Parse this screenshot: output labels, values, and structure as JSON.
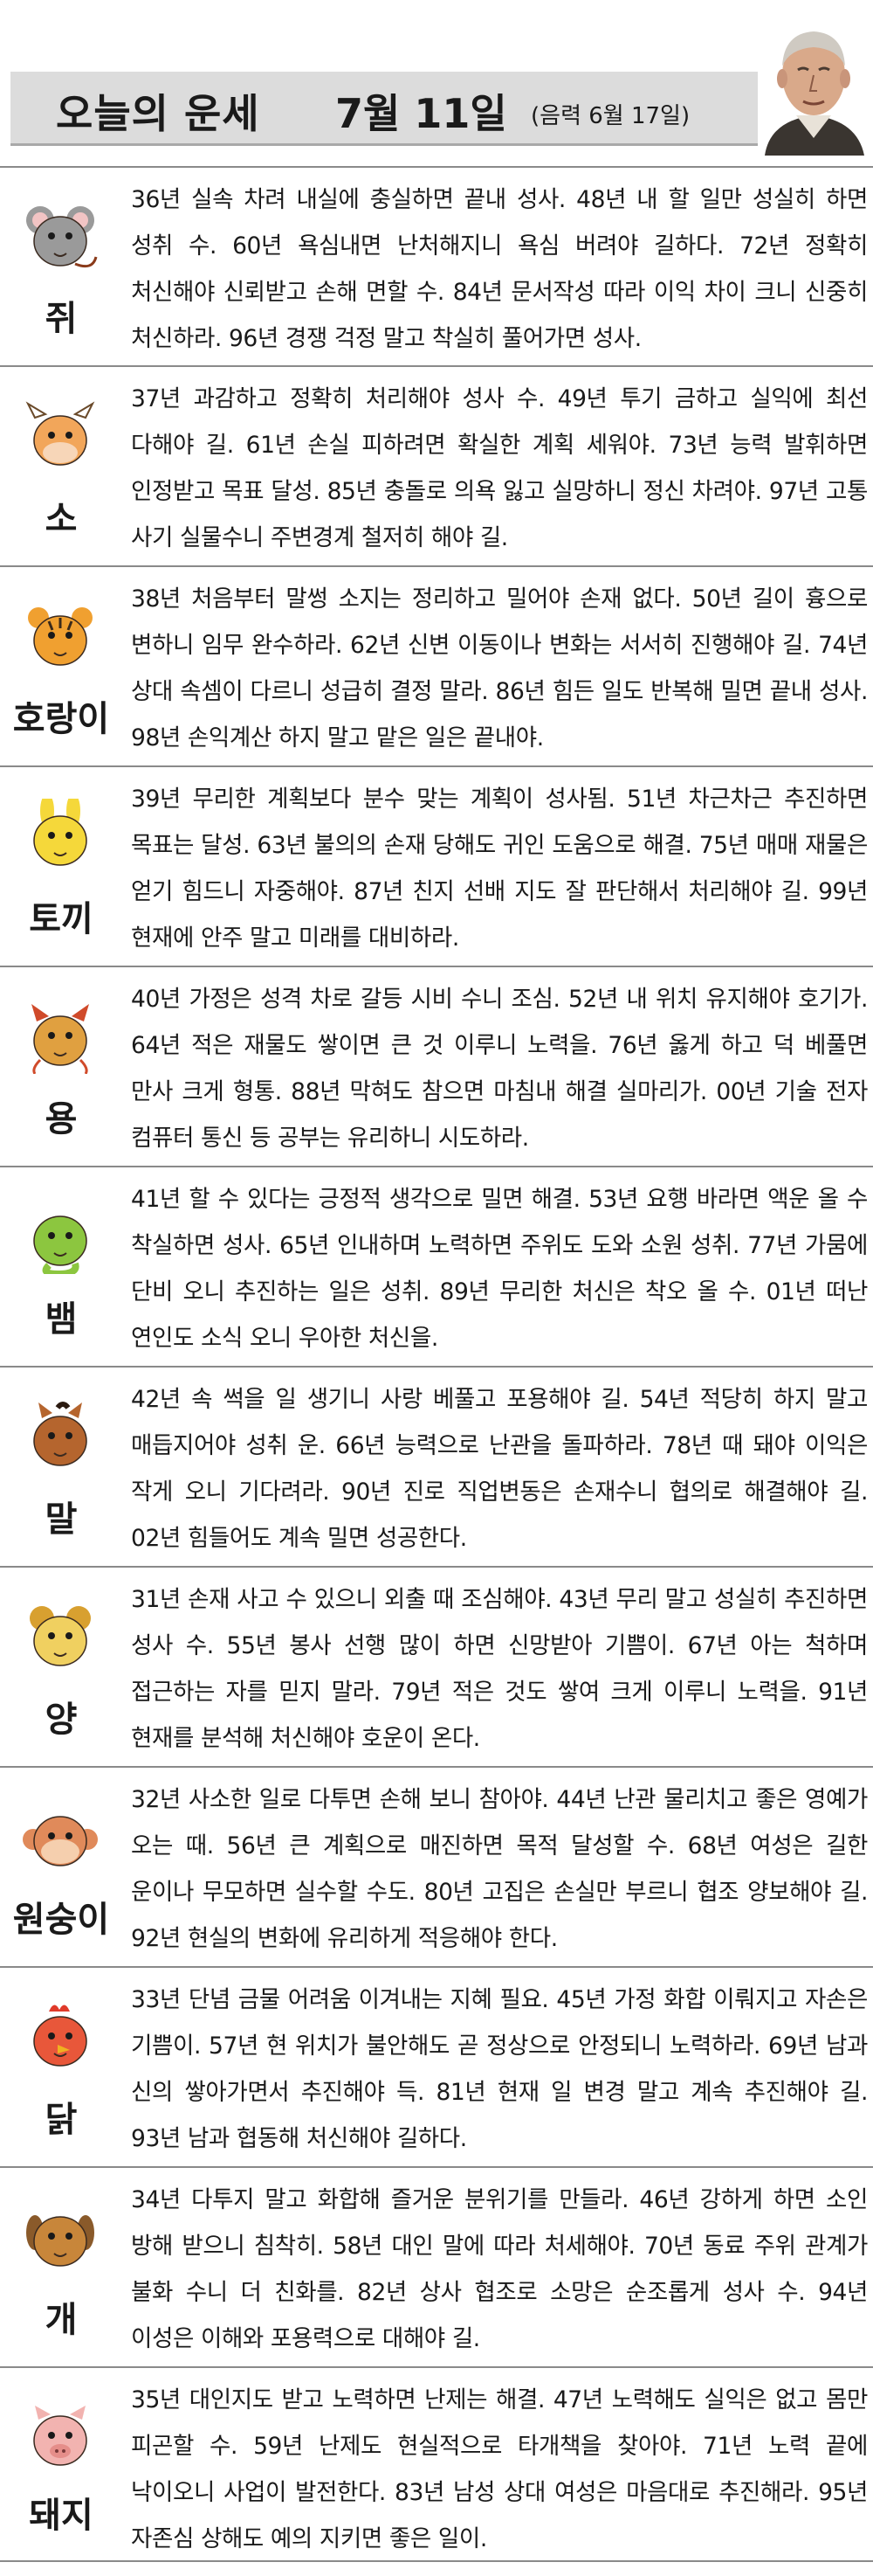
{
  "header": {
    "title": "오늘의 운세",
    "date": "7월 11일",
    "lunar": "(음력 6월 17일)"
  },
  "rows": [
    {
      "name": "쥐",
      "icon": "rat-icon",
      "color": "#9a9a9a",
      "text": "36년 실속 차려 내실에 충실하면 끝내 성사. 48년 내 할 일만 성실히 하면 성취 수. 60년 욕심내면 난처해지니 욕심 버려야 길하다. 72년 정확히 처신해야 신뢰받고 손해 면할 수. 84년 문서작성 따라 이익 차이 크니 신중히 처신하라. 96년 경쟁 걱정 말고 착실히 풀어가면 성사."
    },
    {
      "name": "소",
      "icon": "cow-icon",
      "color": "#f2a65a",
      "text": "37년 과감하고 정확히 처리해야 성사 수. 49년 투기 금하고 실익에 최선 다해야 길. 61년 손실 피하려면 확실한 계획 세워야. 73년 능력 발휘하면 인정받고 목표 달성. 85년 충돌로 의욕 잃고 실망하니 정신 차려야. 97년 고통 사기 실물수니 주변경계 철저히 해야 길."
    },
    {
      "name": "호랑이",
      "icon": "tiger-icon",
      "color": "#f0a030",
      "text": "38년 처음부터 말썽 소지는 정리하고 밀어야 손재 없다. 50년 길이 흉으로 변하니 임무 완수하라. 62년 신변 이동이나 변화는 서서히 진행해야 길. 74년 상대 속셈이 다르니 성급히 결정 말라. 86년 힘든 일도 반복해 밀면 끝내 성사. 98년 손익계산 하지 말고 맡은 일은 끝내야."
    },
    {
      "name": "토끼",
      "icon": "rabbit-icon",
      "color": "#f5d83a",
      "text": "39년 무리한 계획보다 분수 맞는 계획이 성사됨. 51년 차근차근 추진하면 목표는 달성. 63년 불의의 손재 당해도 귀인 도움으로 해결. 75년 매매 재물은 얻기 힘드니 자중해야. 87년 친지 선배 지도 잘 판단해서 처리해야 길. 99년 현재에 안주 말고 미래를 대비하라."
    },
    {
      "name": "용",
      "icon": "dragon-icon",
      "color": "#e0a040",
      "text": "40년 가정은 성격 차로 갈등 시비 수니 조심. 52년 내 위치 유지해야 호기가. 64년 적은 재물도 쌓이면 큰 것 이루니 노력을. 76년 옳게 하고 덕 베풀면 만사 크게 형통. 88년 막혀도 참으면 마침내 해결 실마리가. 00년 기술 전자 컴퓨터 통신 등 공부는 유리하니 시도하라."
    },
    {
      "name": "뱀",
      "icon": "snake-icon",
      "color": "#8cc63f",
      "text": "41년 할 수 있다는 긍정적 생각으로 밀면 해결. 53년 요행 바라면 액운 올 수 착실하면 성사. 65년 인내하며 노력하면 주위도 도와 소원 성취. 77년 가뭄에 단비 오니 추진하는 일은 성취. 89년 무리한 처신은 착오 올 수. 01년 떠난 연인도 소식 오니 우아한 처신을."
    },
    {
      "name": "말",
      "icon": "horse-icon",
      "color": "#b5652e",
      "text": "42년 속 썩을 일 생기니 사랑 베풀고 포용해야 길. 54년 적당히 하지 말고 매듭지어야 성취 운. 66년 능력으로 난관을 돌파하라. 78년 때 돼야 이익은 작게 오니 기다려라. 90년 진로 직업변동은 손재수니 협의로 해결해야 길. 02년 힘들어도 계속 밀면 성공한다."
    },
    {
      "name": "양",
      "icon": "sheep-icon",
      "color": "#f0d060",
      "text": "31년 손재 사고 수 있으니 외출 때 조심해야. 43년 무리 말고 성실히 추진하면 성사 수. 55년 봉사 선행 많이 하면 신망받아 기쁨이. 67년 아는 척하며 접근하는 자를 믿지 말라. 79년 적은 것도 쌓여 크게 이루니 노력을. 91년 현재를 분석해 처신해야 호운이 온다."
    },
    {
      "name": "원숭이",
      "icon": "monkey-icon",
      "color": "#e08a5a",
      "text": "32년 사소한 일로 다투면 손해 보니 참아야. 44년 난관 물리치고 좋은 영예가 오는 때. 56년 큰 계획으로 매진하면 목적 달성할 수. 68년 여성은 길한 운이나 무모하면 실수할 수도. 80년 고집은 손실만 부르니 협조 양보해야 길. 92년 현실의 변화에 유리하게 적응해야 한다."
    },
    {
      "name": "닭",
      "icon": "rooster-icon",
      "color": "#e8573a",
      "text": "33년 단념 금물 어려움 이겨내는 지혜 필요. 45년 가정 화합 이뤄지고 자손은 기쁨이. 57년 현 위치가 불안해도 곧 정상으로 안정되니 노력하라. 69년 남과 신의 쌓아가면서 추진해야 득. 81년 현재 일 변경 말고 계속 추진해야 길. 93년 남과 협동해 처신해야 길하다."
    },
    {
      "name": "개",
      "icon": "dog-icon",
      "color": "#c8863a",
      "text": "34년 다투지 말고 화합해 즐거운 분위기를 만들라. 46년 강하게 하면 소인 방해 받으니 침착히. 58년 대인 말에 따라 처세해야. 70년 동료 주위 관계가 불화 수니 더 친화를. 82년 상사 협조로 소망은 순조롭게 성사 수. 94년 이성은 이해와 포용력으로 대해야 길."
    },
    {
      "name": "돼지",
      "icon": "pig-icon",
      "color": "#f2b3b0",
      "text": "35년 대인지도 받고 노력하면 난제는 해결. 47년 노력해도 실익은 없고 몸만 피곤할 수. 59년 난제도 현실적으로 타개책을 찾아야. 71년 노력 끝에 낙이오니 사업이 발전한다. 83년 남성 상대 여성은 마음대로 추진해라. 95년 자존심 상해도 예의 지키면 좋은 일이."
    }
  ]
}
